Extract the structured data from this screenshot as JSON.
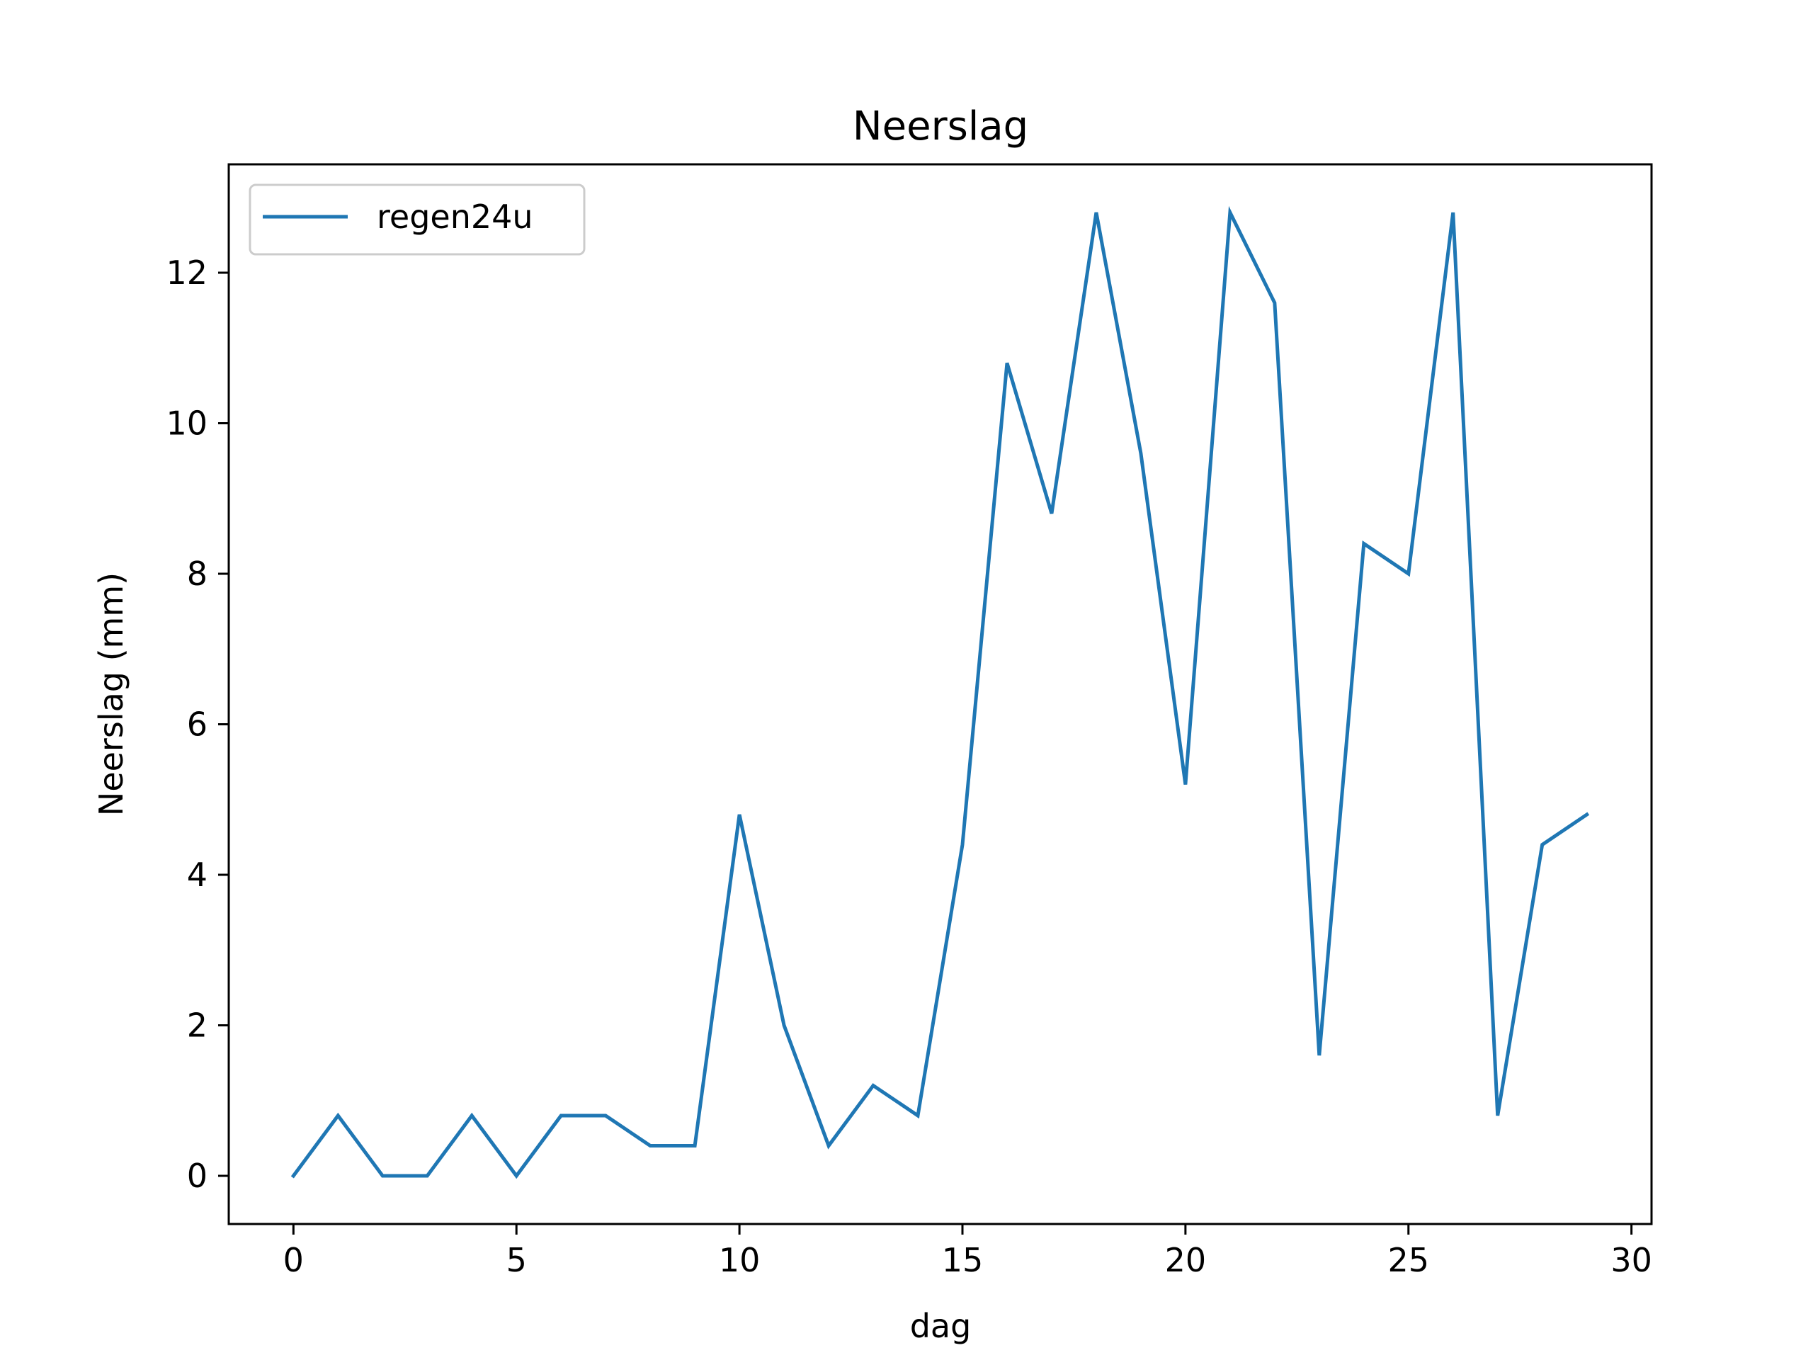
{
  "chart_data": {
    "type": "line",
    "title": "Neerslag",
    "xlabel": "dag",
    "ylabel": "Neerslag (mm)",
    "xlim": [
      -1.45,
      30.45
    ],
    "ylim": [
      -0.64,
      13.44
    ],
    "xticks": [
      0,
      5,
      10,
      15,
      20,
      25,
      30
    ],
    "yticks": [
      0,
      2,
      4,
      6,
      8,
      10,
      12
    ],
    "grid": false,
    "legend_position": "top-left",
    "series": [
      {
        "name": "regen24u",
        "color": "#1f77b4",
        "x": [
          0,
          1,
          2,
          3,
          4,
          5,
          6,
          7,
          8,
          9,
          10,
          11,
          12,
          13,
          14,
          15,
          16,
          17,
          18,
          19,
          20,
          21,
          22,
          23,
          24,
          25,
          26,
          27,
          28,
          29
        ],
        "values": [
          0,
          0.8,
          0,
          0,
          0.8,
          0,
          0.8,
          0.8,
          0.4,
          0.4,
          4.8,
          2.0,
          0.4,
          1.2,
          0.8,
          4.4,
          10.8,
          8.8,
          12.8,
          9.6,
          5.2,
          12.8,
          11.6,
          1.6,
          8.4,
          8.0,
          12.8,
          0.8,
          4.4,
          4.8
        ]
      }
    ]
  }
}
